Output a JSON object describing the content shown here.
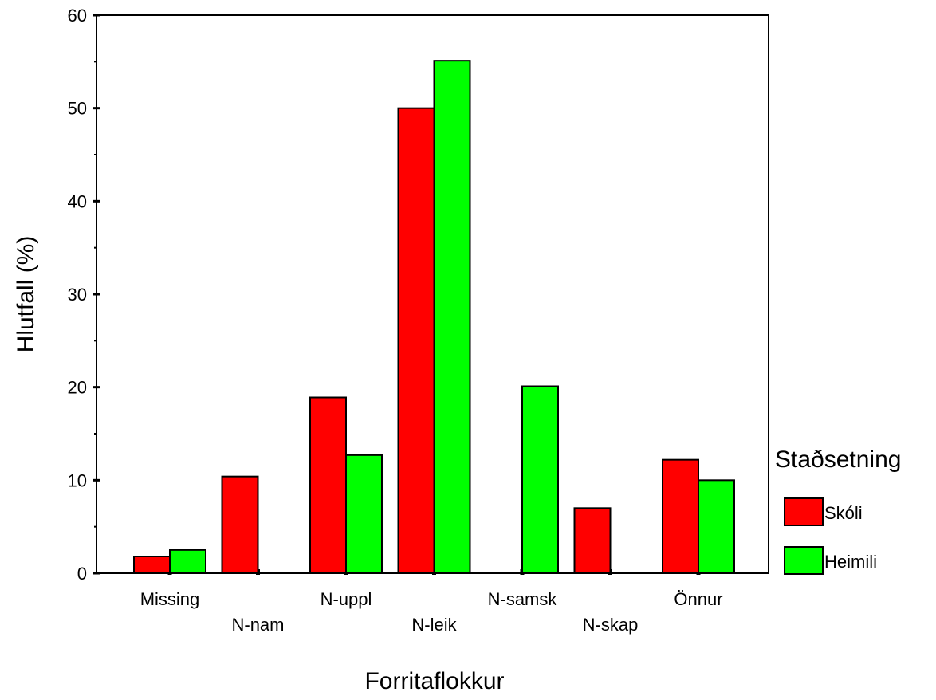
{
  "chart_data": {
    "type": "bar",
    "xlabel": "Forritaflokkur",
    "ylabel": "Hlutfall (%)",
    "ylim": [
      0,
      60
    ],
    "yticks": [
      0,
      10,
      20,
      30,
      40,
      50,
      60
    ],
    "grid": false,
    "legend": {
      "title": "Staðsetning",
      "placement": "right"
    },
    "categories": [
      "Missing",
      "N-nam",
      "N-uppl",
      "N-leik",
      "N-samsk",
      "N-skap",
      "Önnur"
    ],
    "series": [
      {
        "name": "Skóli",
        "color": "#ff0000",
        "values": [
          1.8,
          10.4,
          18.9,
          50.0,
          0,
          7.0,
          12.2
        ]
      },
      {
        "name": "Heimili",
        "color": "#00ff00",
        "values": [
          2.5,
          0,
          12.7,
          55.1,
          20.1,
          0,
          10.0
        ]
      }
    ]
  }
}
